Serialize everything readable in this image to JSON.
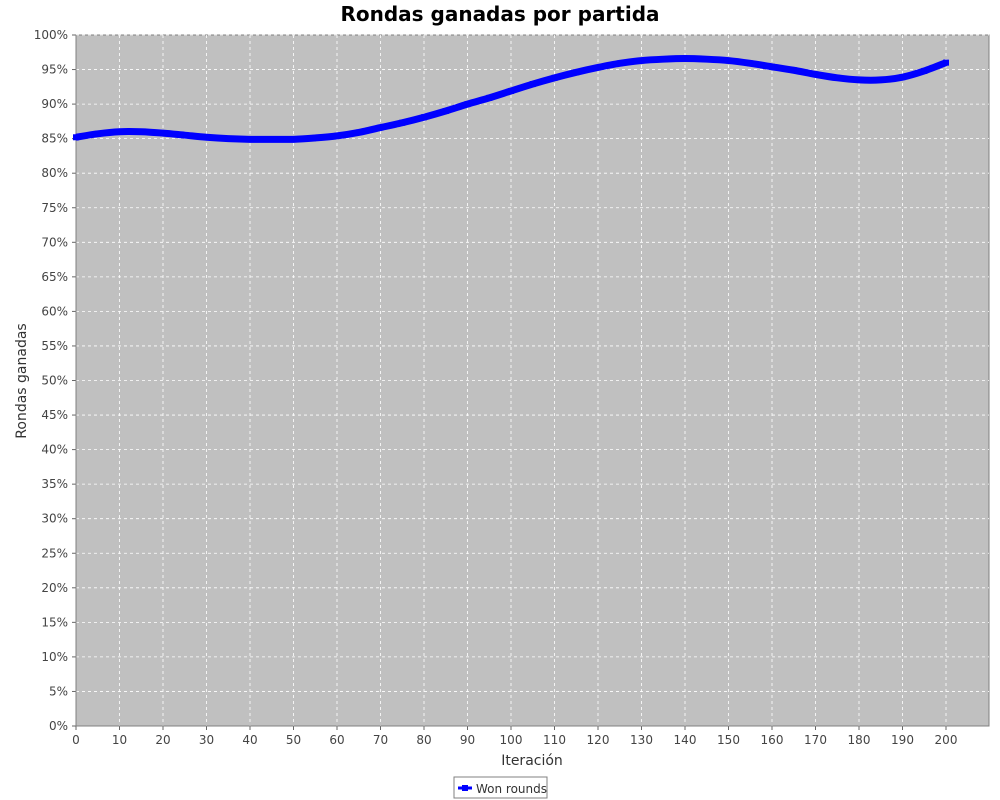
{
  "chart_data": {
    "type": "line",
    "title": "Rondas ganadas por partida",
    "xlabel": "Iteración",
    "ylabel": "Rondas ganadas",
    "xlim": [
      0,
      200
    ],
    "ylim": [
      0,
      100
    ],
    "x_ticks": [
      0,
      10,
      20,
      30,
      40,
      50,
      60,
      70,
      80,
      90,
      100,
      110,
      120,
      130,
      140,
      150,
      160,
      170,
      180,
      190,
      200
    ],
    "y_ticks": [
      "0%",
      "5%",
      "10%",
      "15%",
      "20%",
      "25%",
      "30%",
      "35%",
      "40%",
      "45%",
      "50%",
      "55%",
      "60%",
      "65%",
      "70%",
      "75%",
      "80%",
      "85%",
      "90%",
      "95%",
      "100%"
    ],
    "grid": true,
    "legend_position": "bottom",
    "colors": {
      "series": "#0000ff",
      "plot_bg": "#c0c0c0",
      "grid": "#ffffff"
    },
    "series": [
      {
        "name": "Won rounds",
        "x": [
          0,
          5,
          10,
          15,
          20,
          25,
          30,
          35,
          40,
          45,
          50,
          55,
          60,
          65,
          70,
          75,
          80,
          85,
          90,
          95,
          100,
          105,
          110,
          115,
          120,
          125,
          130,
          135,
          140,
          145,
          150,
          155,
          160,
          165,
          170,
          175,
          180,
          185,
          190,
          195,
          200
        ],
        "values": [
          85.2,
          85.7,
          86.0,
          86.0,
          85.8,
          85.5,
          85.2,
          85.0,
          84.9,
          84.9,
          84.9,
          85.1,
          85.4,
          85.9,
          86.6,
          87.3,
          88.1,
          89.0,
          90.0,
          90.9,
          91.9,
          92.9,
          93.8,
          94.6,
          95.3,
          95.9,
          96.3,
          96.5,
          96.6,
          96.5,
          96.3,
          95.9,
          95.4,
          94.9,
          94.3,
          93.8,
          93.5,
          93.5,
          93.9,
          94.8,
          96.0
        ]
      }
    ]
  }
}
